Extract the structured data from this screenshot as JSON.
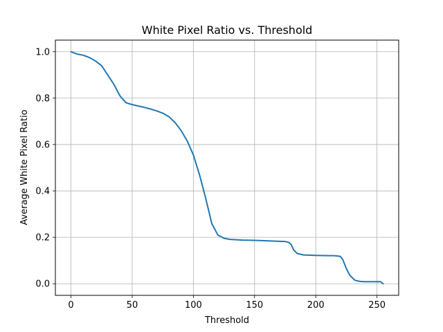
{
  "chart_data": {
    "type": "line",
    "title": "White Pixel Ratio vs. Threshold",
    "xlabel": "Threshold",
    "ylabel": "Average White Pixel Ratio",
    "xlim": [
      -12.75,
      267.75
    ],
    "ylim": [
      -0.05,
      1.05
    ],
    "xticks": [
      0,
      50,
      100,
      150,
      200,
      250
    ],
    "yticks": [
      0.0,
      0.2,
      0.4,
      0.6,
      0.8,
      1.0
    ],
    "ytick_labels": [
      "0.0",
      "0.2",
      "0.4",
      "0.6",
      "0.8",
      "1.0"
    ],
    "grid": true,
    "series": [
      {
        "color": "#1f77b4",
        "x": [
          0,
          5,
          10,
          15,
          20,
          25,
          30,
          35,
          40,
          45,
          50,
          55,
          60,
          65,
          70,
          75,
          80,
          85,
          90,
          95,
          100,
          105,
          110,
          115,
          120,
          125,
          130,
          140,
          150,
          160,
          170,
          175,
          178,
          180,
          182,
          185,
          190,
          200,
          210,
          215,
          220,
          222,
          225,
          228,
          232,
          236,
          240,
          245,
          250,
          253,
          255
        ],
        "y": [
          1.0,
          0.99,
          0.985,
          0.975,
          0.96,
          0.94,
          0.9,
          0.86,
          0.81,
          0.78,
          0.772,
          0.766,
          0.76,
          0.753,
          0.745,
          0.735,
          0.72,
          0.695,
          0.66,
          0.615,
          0.555,
          0.47,
          0.37,
          0.26,
          0.21,
          0.196,
          0.191,
          0.188,
          0.187,
          0.185,
          0.183,
          0.182,
          0.178,
          0.168,
          0.145,
          0.13,
          0.124,
          0.122,
          0.121,
          0.121,
          0.118,
          0.105,
          0.065,
          0.035,
          0.015,
          0.01,
          0.009,
          0.009,
          0.009,
          0.009,
          0.0
        ]
      }
    ]
  }
}
